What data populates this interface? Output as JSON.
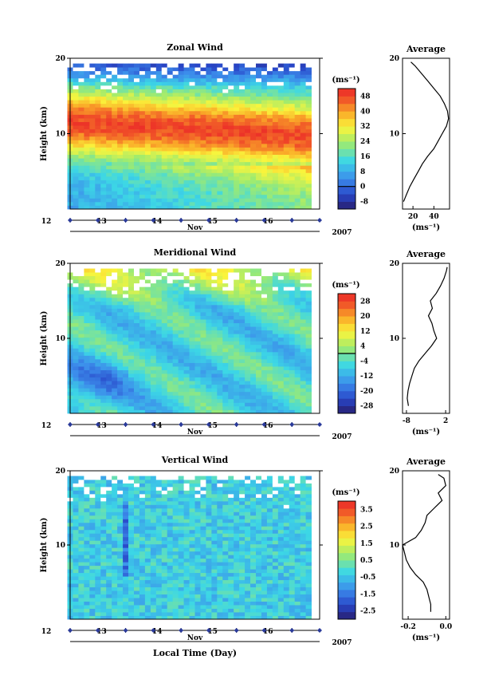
{
  "chart_data": [
    {
      "type": "heatmap",
      "title": "Zonal Wind",
      "ylabel": "Height (km)",
      "ylim": [
        0,
        20
      ],
      "y_ticks": [
        "10",
        "20"
      ],
      "x_ticks": [
        "12",
        "13",
        "14",
        "15",
        "16"
      ],
      "xlim": [
        12,
        16.5
      ],
      "data_x": [
        11.95,
        16.35
      ],
      "data_y": [
        0,
        19.3
      ],
      "x_month": "Nov",
      "x_year": "2007",
      "colorbar": {
        "unit": "(ms⁻¹)",
        "ticks": [
          "-8",
          "0",
          "8",
          "16",
          "24",
          "32",
          "40",
          "48"
        ],
        "values": [
          -8,
          0,
          8,
          16,
          24,
          32,
          40,
          48
        ],
        "range": [
          -12,
          52
        ],
        "zero_line": 0
      },
      "field": {
        "kind": "zonal",
        "x_days": [
          12,
          12.5,
          13,
          13.5,
          14,
          14.5,
          15,
          15.5,
          16,
          16.35
        ],
        "heights_km": [
          1,
          3,
          5,
          7,
          9,
          11,
          13,
          15,
          17,
          19
        ],
        "jet_peak_height_km": [
          11.5,
          11.2,
          10.8,
          10.5,
          10.5,
          10.2,
          10,
          10,
          10,
          10
        ],
        "jet_peak_speed": 52
      },
      "average": {
        "title": "Average",
        "xlabel": "(ms⁻¹)",
        "x_ticks": [
          "20",
          "40"
        ],
        "xlim": [
          10,
          55
        ],
        "heights_km": [
          1,
          2,
          3,
          4,
          5,
          6,
          7,
          8,
          9,
          10,
          11,
          12,
          13,
          14,
          15,
          16,
          17,
          18,
          19,
          19.5
        ],
        "values": [
          11,
          14,
          17,
          21,
          25,
          29,
          34,
          40,
          44,
          48,
          52,
          54,
          53,
          50,
          46,
          40,
          34,
          28,
          22,
          18
        ]
      }
    },
    {
      "type": "heatmap",
      "title": "Meridional Wind",
      "ylabel": "Height (km)",
      "ylim": [
        0,
        20
      ],
      "y_ticks": [
        "10",
        "20"
      ],
      "x_ticks": [
        "12",
        "13",
        "14",
        "15",
        "16"
      ],
      "xlim": [
        12,
        16.5
      ],
      "data_x": [
        11.95,
        16.35
      ],
      "data_y": [
        0,
        19.3
      ],
      "x_month": "Nov",
      "x_year": "2007",
      "colorbar": {
        "unit": "(ms⁻¹)",
        "ticks": [
          "-28",
          "-20",
          "-12",
          "-4",
          "4",
          "12",
          "20",
          "28"
        ],
        "values": [
          -28,
          -20,
          -12,
          -4,
          4,
          12,
          20,
          28
        ],
        "range": [
          -32,
          32
        ],
        "zero_line": 0
      },
      "field": {
        "kind": "meridional",
        "x_days": [
          12,
          12.5,
          13,
          13.5,
          14,
          14.5,
          15,
          15.5,
          16,
          16.35
        ],
        "heights_km": [
          1,
          3,
          5,
          7,
          9,
          11,
          13,
          15,
          17,
          19
        ],
        "low_level_min_speed": -24
      },
      "average": {
        "title": "Average",
        "xlabel": "(ms⁻¹)",
        "x_ticks": [
          "-8",
          "2"
        ],
        "xlim": [
          -9,
          3
        ],
        "heights_km": [
          1,
          2,
          3,
          4,
          5,
          6,
          7,
          8,
          9,
          10,
          11,
          12,
          13,
          14,
          15,
          16,
          17,
          18,
          19,
          19.5
        ],
        "values": [
          -7.5,
          -7.8,
          -7.6,
          -7.2,
          -6.6,
          -6,
          -4.8,
          -3.2,
          -1.6,
          -0.3,
          -1,
          -1.5,
          -2.4,
          -1.4,
          -1.9,
          -0.4,
          0.7,
          1.6,
          2.2,
          2.4
        ]
      }
    },
    {
      "type": "heatmap",
      "title": "Vertical Wind",
      "ylabel": "Height (km)",
      "xlabel": "Local Time (Day)",
      "ylim": [
        0,
        20
      ],
      "y_ticks": [
        "10",
        "20"
      ],
      "x_ticks": [
        "12",
        "13",
        "14",
        "15",
        "16"
      ],
      "xlim": [
        12,
        16.5
      ],
      "data_x": [
        11.95,
        16.35
      ],
      "data_y": [
        0,
        19.3
      ],
      "x_month": "Nov",
      "x_year": "2007",
      "colorbar": {
        "unit": "(ms⁻¹)",
        "ticks": [
          "-2.5",
          "-1.5",
          "-0.5",
          "0.5",
          "1.5",
          "2.5",
          "3.5"
        ],
        "values": [
          -2.5,
          -1.5,
          -0.5,
          0.5,
          1.5,
          2.5,
          3.5
        ],
        "range": [
          -3,
          4
        ]
      },
      "field": {
        "kind": "vertical",
        "x_days": [
          12,
          12.5,
          13,
          13.5,
          14,
          14.5,
          15,
          15.5,
          16,
          16.35
        ],
        "heights_km": [
          1,
          3,
          5,
          7,
          9,
          11,
          13,
          15,
          17,
          19
        ],
        "background_speed": -0.2
      },
      "average": {
        "title": "Average",
        "xlabel": "(ms⁻¹)",
        "x_ticks": [
          "-0.2",
          "0.0"
        ],
        "xlim": [
          -0.23,
          0.02
        ],
        "heights_km": [
          1,
          2,
          3,
          4,
          5,
          6,
          7,
          8,
          9,
          10,
          11,
          12,
          13,
          14,
          15,
          16,
          17,
          18,
          19,
          19.5
        ],
        "values": [
          -0.08,
          -0.08,
          -0.09,
          -0.1,
          -0.12,
          -0.16,
          -0.19,
          -0.21,
          -0.22,
          -0.23,
          -0.16,
          -0.13,
          -0.11,
          -0.1,
          -0.06,
          -0.02,
          -0.04,
          0,
          -0.01,
          -0.04
        ]
      }
    }
  ]
}
